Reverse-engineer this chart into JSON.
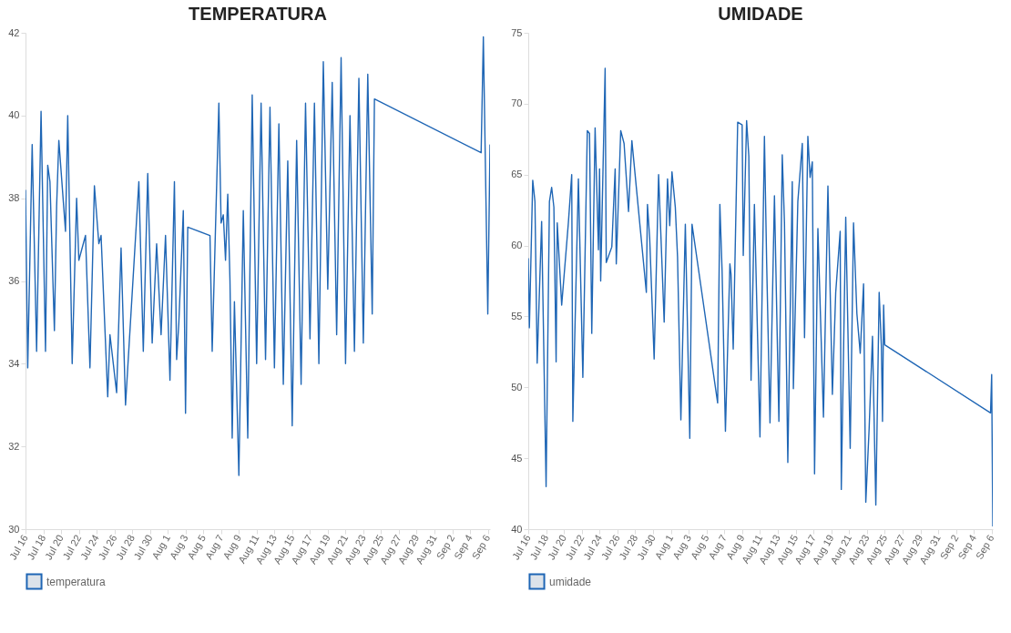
{
  "chart_data": [
    {
      "type": "line",
      "title": "TEMPERATURA",
      "legend": "bottom",
      "xlim": [
        "--07-16",
        "--09-06T06:00"
      ],
      "ylim": [
        30,
        42
      ],
      "yticks": [
        30,
        32,
        34,
        36,
        38,
        40,
        42
      ],
      "xticks": [
        {
          "value": "--07-16",
          "label": "Jul 16"
        },
        {
          "value": "--07-18",
          "label": "Jul 18"
        },
        {
          "value": "--07-20",
          "label": "Jul 20"
        },
        {
          "value": "--07-22",
          "label": "Jul 22"
        },
        {
          "value": "--07-24",
          "label": "Jul 24"
        },
        {
          "value": "--07-26",
          "label": "Jul 26"
        },
        {
          "value": "--07-28",
          "label": "Jul 28"
        },
        {
          "value": "--07-30",
          "label": "Jul 30"
        },
        {
          "value": "--08-01",
          "label": "Aug 1"
        },
        {
          "value": "--08-03",
          "label": "Aug 3"
        },
        {
          "value": "--08-05",
          "label": "Aug 5"
        },
        {
          "value": "--08-07",
          "label": "Aug 7"
        },
        {
          "value": "--08-09",
          "label": "Aug 9"
        },
        {
          "value": "--08-11",
          "label": "Aug 11"
        },
        {
          "value": "--08-13",
          "label": "Aug 13"
        },
        {
          "value": "--08-15",
          "label": "Aug 15"
        },
        {
          "value": "--08-17",
          "label": "Aug 17"
        },
        {
          "value": "--08-19",
          "label": "Aug 19"
        },
        {
          "value": "--08-21",
          "label": "Aug 21"
        },
        {
          "value": "--08-23",
          "label": "Aug 23"
        },
        {
          "value": "--08-25",
          "label": "Aug 25"
        },
        {
          "value": "--08-27",
          "label": "Aug 27"
        },
        {
          "value": "--08-29",
          "label": "Aug 29"
        },
        {
          "value": "--08-31",
          "label": "Aug 31"
        },
        {
          "value": "--09-02",
          "label": "Sep 2"
        },
        {
          "value": "--09-04",
          "label": "Sep 4"
        },
        {
          "value": "--09-06",
          "label": "Sep 6"
        }
      ],
      "series": [
        {
          "name": "temperatura",
          "color": "#1f66b5",
          "x": [
            "--07-16T00:00",
            "--07-16T06:00",
            "--07-16T18:00",
            "--07-17T06:00",
            "--07-17T18:00",
            "--07-18T06:00",
            "--07-18T12:00",
            "--07-18T18:00",
            "--07-19T06:00",
            "--07-19T12:00",
            "--07-19T18:00",
            "--07-20T12:00",
            "--07-20T18:00",
            "--07-21T06:00",
            "--07-21T18:00",
            "--07-22T00:00",
            "--07-22T18:00",
            "--07-23T06:00",
            "--07-23T18:00",
            "--07-24T06:00",
            "--07-24T12:00",
            "--07-25T06:00",
            "--07-25T12:00",
            "--07-26T06:00",
            "--07-26T18:00",
            "--07-27T06:00",
            "--07-28T18:00",
            "--07-29T06:00",
            "--07-29T18:00",
            "--07-30T06:00",
            "--07-30T18:00",
            "--07-31T06:00",
            "--07-31T18:00",
            "--08-01T06:00",
            "--08-01T18:00",
            "--08-02T00:00",
            "--08-02T06:00",
            "--08-02T18:00",
            "--08-03T00:00",
            "--08-03T06:00",
            "--08-05T18:00",
            "--08-06T00:00",
            "--08-06T18:00",
            "--08-07T00:00",
            "--08-07T06:00",
            "--08-07T12:00",
            "--08-07T18:00",
            "--08-08T00:00",
            "--08-08T06:00",
            "--08-08T12:00",
            "--08-09T00:00",
            "--08-09T12:00",
            "--08-10T00:00",
            "--08-10T12:00",
            "--08-11T00:00",
            "--08-11T12:00",
            "--08-12T00:00",
            "--08-12T12:00",
            "--08-13T00:00",
            "--08-13T12:00",
            "--08-14T00:00",
            "--08-14T12:00",
            "--08-15T00:00",
            "--08-15T12:00",
            "--08-16T00:00",
            "--08-16T12:00",
            "--08-17T00:00",
            "--08-17T12:00",
            "--08-18T00:00",
            "--08-18T12:00",
            "--08-19T00:00",
            "--08-19T12:00",
            "--08-20T00:00",
            "--08-20T12:00",
            "--08-21T00:00",
            "--08-21T12:00",
            "--08-22T00:00",
            "--08-22T12:00",
            "--08-23T00:00",
            "--08-23T12:00",
            "--08-24T00:00",
            "--08-24T06:00",
            "--09-05T06:00",
            "--09-05T12:00",
            "--09-06T00:00",
            "--09-06T06:00"
          ],
          "values": [
            38.2,
            33.9,
            39.3,
            34.3,
            40.1,
            34.3,
            38.8,
            38.4,
            34.8,
            37.8,
            39.4,
            37.2,
            40.0,
            34.0,
            38.0,
            36.5,
            37.1,
            33.9,
            38.3,
            36.9,
            37.1,
            33.2,
            34.7,
            33.3,
            36.8,
            33.0,
            38.4,
            34.3,
            38.6,
            34.5,
            36.9,
            34.7,
            37.1,
            33.6,
            38.4,
            34.1,
            35.0,
            37.7,
            32.8,
            37.3,
            37.1,
            34.3,
            40.3,
            37.4,
            37.6,
            36.5,
            38.1,
            36.0,
            32.2,
            35.5,
            31.3,
            37.7,
            32.2,
            40.5,
            34.0,
            40.3,
            34.1,
            40.2,
            33.9,
            39.8,
            33.5,
            38.9,
            32.5,
            39.4,
            33.5,
            40.3,
            34.6,
            40.3,
            34.0,
            41.3,
            35.8,
            40.8,
            34.7,
            41.4,
            34.0,
            40.0,
            34.3,
            40.9,
            34.5,
            41.0,
            35.2,
            40.4,
            39.1,
            41.9,
            35.2,
            39.3
          ]
        }
      ]
    },
    {
      "type": "line",
      "title": "UMIDADE",
      "legend": "bottom",
      "xlim": [
        "--07-16",
        "--09-06T03:00"
      ],
      "ylim": [
        40,
        75
      ],
      "yticks": [
        40,
        45,
        50,
        55,
        60,
        65,
        70,
        75
      ],
      "xticks": [
        {
          "value": "--07-16",
          "label": "Jul 16"
        },
        {
          "value": "--07-18",
          "label": "Jul 18"
        },
        {
          "value": "--07-20",
          "label": "Jul 20"
        },
        {
          "value": "--07-22",
          "label": "Jul 22"
        },
        {
          "value": "--07-24",
          "label": "Jul 24"
        },
        {
          "value": "--07-26",
          "label": "Jul 26"
        },
        {
          "value": "--07-28",
          "label": "Jul 28"
        },
        {
          "value": "--07-30",
          "label": "Jul 30"
        },
        {
          "value": "--08-01",
          "label": "Aug 1"
        },
        {
          "value": "--08-03",
          "label": "Aug 3"
        },
        {
          "value": "--08-05",
          "label": "Aug 5"
        },
        {
          "value": "--08-07",
          "label": "Aug 7"
        },
        {
          "value": "--08-09",
          "label": "Aug 9"
        },
        {
          "value": "--08-11",
          "label": "Aug 11"
        },
        {
          "value": "--08-13",
          "label": "Aug 13"
        },
        {
          "value": "--08-15",
          "label": "Aug 15"
        },
        {
          "value": "--08-17",
          "label": "Aug 17"
        },
        {
          "value": "--08-19",
          "label": "Aug 19"
        },
        {
          "value": "--08-21",
          "label": "Aug 21"
        },
        {
          "value": "--08-23",
          "label": "Aug 23"
        },
        {
          "value": "--08-25",
          "label": "Aug 25"
        },
        {
          "value": "--08-27",
          "label": "Aug 27"
        },
        {
          "value": "--08-29",
          "label": "Aug 29"
        },
        {
          "value": "--08-31",
          "label": "Aug 31"
        },
        {
          "value": "--09-02",
          "label": "Sep 2"
        },
        {
          "value": "--09-04",
          "label": "Sep 4"
        },
        {
          "value": "--09-06",
          "label": "Sep 6"
        }
      ],
      "series": [
        {
          "name": "umidade",
          "color": "#1f66b5",
          "x": [
            "--07-16T00:00",
            "--07-16T03:00",
            "--07-16T12:00",
            "--07-16T18:00",
            "--07-17T00:00",
            "--07-17T12:00",
            "--07-18T00:00",
            "--07-18T09:00",
            "--07-18T15:00",
            "--07-18T21:00",
            "--07-19T03:00",
            "--07-19T06:00",
            "--07-19T18:00",
            "--07-20T12:00",
            "--07-20T21:00",
            "--07-21T00:00",
            "--07-21T15:00",
            "--07-22T03:00",
            "--07-22T15:00",
            "--07-22T21:00",
            "--07-23T03:00",
            "--07-23T12:00",
            "--07-23T21:00",
            "--07-24T00:00",
            "--07-24T03:00",
            "--07-24T15:00",
            "--07-24T18:00",
            "--07-25T09:00",
            "--07-25T18:00",
            "--07-25T21:00",
            "--07-26T09:00",
            "--07-26T18:00",
            "--07-27T06:00",
            "--07-27T15:00",
            "--07-29T06:00",
            "--07-29T09:00",
            "--07-29T15:00",
            "--07-30T03:00",
            "--07-30T15:00",
            "--07-31T06:00",
            "--07-31T15:00",
            "--07-31T21:00",
            "--08-01T03:00",
            "--08-01T12:00",
            "--08-01T18:00",
            "--08-02T03:00",
            "--08-02T15:00",
            "--08-03T03:00",
            "--08-03T09:00",
            "--08-06T06:00",
            "--08-06T12:00",
            "--08-06T18:00",
            "--08-07T03:00",
            "--08-07T15:00",
            "--08-07T18:00",
            "--08-08T00:00",
            "--08-08T12:00",
            "--08-09T00:00",
            "--08-09T03:00",
            "--08-09T12:00",
            "--08-09T18:00",
            "--08-10T00:00",
            "--08-10T09:00",
            "--08-11T00:00",
            "--08-11T12:00",
            "--08-11T18:00",
            "--08-12T03:00",
            "--08-12T15:00",
            "--08-13T03:00",
            "--08-13T12:00",
            "--08-13T18:00",
            "--08-14T03:00",
            "--08-14T15:00",
            "--08-14T18:00",
            "--08-15T06:00",
            "--08-15T18:00",
            "--08-16T00:00",
            "--08-16T09:00",
            "--08-16T15:00",
            "--08-16T21:00",
            "--08-17T03:00",
            "--08-17T12:00",
            "--08-18T03:00",
            "--08-18T15:00",
            "--08-19T03:00",
            "--08-19T12:00",
            "--08-20T00:00",
            "--08-20T03:00",
            "--08-20T15:00",
            "--08-21T03:00",
            "--08-21T12:00",
            "--08-21T21:00",
            "--08-22T06:00",
            "--08-22T15:00",
            "--08-22T21:00",
            "--08-23T06:00",
            "--08-23T15:00",
            "--08-24T00:00",
            "--08-24T09:00",
            "--08-24T15:00",
            "--08-24T18:00",
            "--08-24T21:00",
            "--08-25T00:00",
            "--09-05T21:00",
            "--09-06T00:00",
            "--09-06T03:00"
          ],
          "values": [
            59.1,
            54.2,
            64.6,
            63.1,
            51.7,
            61.7,
            43.0,
            63.1,
            64.1,
            62.7,
            51.8,
            61.6,
            55.8,
            61.6,
            65.0,
            47.6,
            64.7,
            50.7,
            68.1,
            67.9,
            53.8,
            68.3,
            59.7,
            65.4,
            57.5,
            72.5,
            58.8,
            59.9,
            65.4,
            58.7,
            68.1,
            67.2,
            62.4,
            67.4,
            56.7,
            62.9,
            60.5,
            52.0,
            65.0,
            54.6,
            64.7,
            61.4,
            65.2,
            62.7,
            59.2,
            47.7,
            61.5,
            46.4,
            61.5,
            48.9,
            62.9,
            58.2,
            46.9,
            58.7,
            58.0,
            52.7,
            68.7,
            68.5,
            59.3,
            68.8,
            66.3,
            50.5,
            62.9,
            46.5,
            67.7,
            58.8,
            47.5,
            63.5,
            47.6,
            66.4,
            61.6,
            44.7,
            64.5,
            49.9,
            63.1,
            67.2,
            53.5,
            67.7,
            64.8,
            65.9,
            43.9,
            61.2,
            47.9,
            64.2,
            49.5,
            56.7,
            61.0,
            42.8,
            62.0,
            45.7,
            61.6,
            55.2,
            52.4,
            57.3,
            41.9,
            47.1,
            53.6,
            41.7,
            56.7,
            52.9,
            47.6,
            55.8,
            53.0,
            48.2,
            50.9,
            40.2
          ]
        }
      ]
    }
  ]
}
